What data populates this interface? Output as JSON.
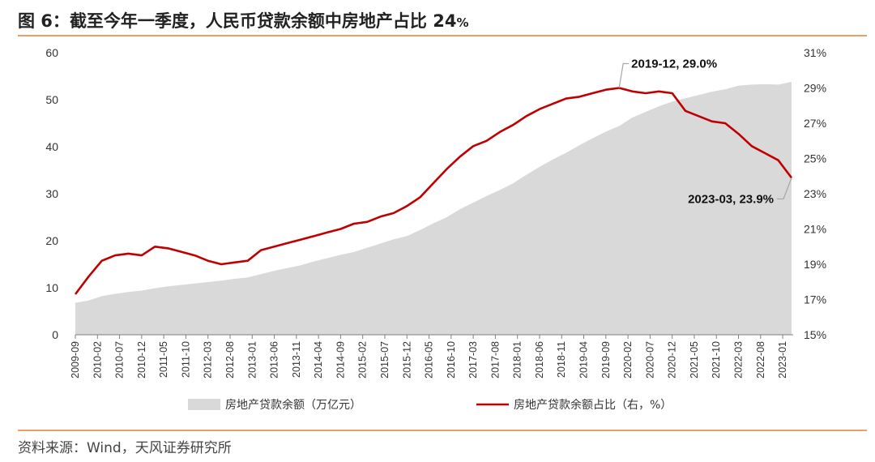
{
  "title": {
    "prefix": "图 6：",
    "text": "截至今年一季度，人民币贷款余额中房地产占比 24",
    "suffix": "%"
  },
  "source": "资料来源：Wind，天风证券研究所",
  "colors": {
    "area": "#D9D9D9",
    "line": "#C00000",
    "rule": "#E8A06A"
  },
  "chart_data": {
    "type": "area+line",
    "x_tick_labels": [
      "2009-09",
      "2010-02",
      "2010-07",
      "2010-12",
      "2011-05",
      "2011-10",
      "2012-03",
      "2012-08",
      "2013-01",
      "2013-06",
      "2013-11",
      "2014-04",
      "2014-09",
      "2015-02",
      "2015-07",
      "2015-12",
      "2016-05",
      "2016-10",
      "2017-03",
      "2017-08",
      "2018-01",
      "2018-06",
      "2018-11",
      "2019-04",
      "2019-09",
      "2020-02",
      "2020-07",
      "2020-12",
      "2021-05",
      "2021-10",
      "2022-03",
      "2022-08",
      "2023-01"
    ],
    "left_axis": {
      "ticks": [
        "0",
        "10",
        "20",
        "30",
        "40",
        "50",
        "60"
      ],
      "ylim": [
        0,
        60
      ]
    },
    "right_axis": {
      "ticks": [
        "15%",
        "17%",
        "19%",
        "21%",
        "23%",
        "25%",
        "27%",
        "29%",
        "31%"
      ],
      "ylim": [
        15,
        31
      ]
    },
    "series": [
      {
        "name": "房地产贷款余额（万亿元）",
        "type": "area",
        "axis": "left",
        "points": [
          [
            "2009-09",
            6.8
          ],
          [
            "2009-12",
            7.3
          ],
          [
            "2010-03",
            8.2
          ],
          [
            "2010-06",
            8.7
          ],
          [
            "2010-09",
            9.1
          ],
          [
            "2010-12",
            9.4
          ],
          [
            "2011-03",
            9.9
          ],
          [
            "2011-06",
            10.3
          ],
          [
            "2011-09",
            10.6
          ],
          [
            "2011-12",
            10.9
          ],
          [
            "2012-03",
            11.2
          ],
          [
            "2012-06",
            11.5
          ],
          [
            "2012-09",
            11.9
          ],
          [
            "2012-12",
            12.2
          ],
          [
            "2013-03",
            12.9
          ],
          [
            "2013-06",
            13.6
          ],
          [
            "2013-09",
            14.2
          ],
          [
            "2013-12",
            14.8
          ],
          [
            "2014-03",
            15.6
          ],
          [
            "2014-06",
            16.3
          ],
          [
            "2014-09",
            17.0
          ],
          [
            "2014-12",
            17.6
          ],
          [
            "2015-03",
            18.5
          ],
          [
            "2015-06",
            19.4
          ],
          [
            "2015-09",
            20.3
          ],
          [
            "2015-12",
            21.0
          ],
          [
            "2016-03",
            22.3
          ],
          [
            "2016-06",
            23.7
          ],
          [
            "2016-09",
            25.0
          ],
          [
            "2016-12",
            26.7
          ],
          [
            "2017-03",
            28.1
          ],
          [
            "2017-06",
            29.5
          ],
          [
            "2017-09",
            30.8
          ],
          [
            "2017-12",
            32.2
          ],
          [
            "2018-03",
            34.0
          ],
          [
            "2018-06",
            35.7
          ],
          [
            "2018-09",
            37.3
          ],
          [
            "2018-12",
            38.7
          ],
          [
            "2019-03",
            40.3
          ],
          [
            "2019-06",
            41.8
          ],
          [
            "2019-09",
            43.2
          ],
          [
            "2019-12",
            44.4
          ],
          [
            "2020-03",
            46.2
          ],
          [
            "2020-06",
            47.4
          ],
          [
            "2020-09",
            48.6
          ],
          [
            "2020-12",
            49.6
          ],
          [
            "2021-03",
            50.3
          ],
          [
            "2021-06",
            51.0
          ],
          [
            "2021-09",
            51.7
          ],
          [
            "2021-12",
            52.2
          ],
          [
            "2022-03",
            53.0
          ],
          [
            "2022-06",
            53.2
          ],
          [
            "2022-09",
            53.3
          ],
          [
            "2022-12",
            53.2
          ],
          [
            "2023-03",
            53.8
          ]
        ]
      },
      {
        "name": "房地产贷款余额占比（右，%）",
        "type": "line",
        "axis": "right",
        "points": [
          [
            "2009-09",
            17.3
          ],
          [
            "2009-12",
            18.3
          ],
          [
            "2010-03",
            19.2
          ],
          [
            "2010-06",
            19.5
          ],
          [
            "2010-09",
            19.6
          ],
          [
            "2010-12",
            19.5
          ],
          [
            "2011-03",
            20.0
          ],
          [
            "2011-06",
            19.9
          ],
          [
            "2011-09",
            19.7
          ],
          [
            "2011-12",
            19.5
          ],
          [
            "2012-03",
            19.2
          ],
          [
            "2012-06",
            19.0
          ],
          [
            "2012-09",
            19.1
          ],
          [
            "2012-12",
            19.2
          ],
          [
            "2013-03",
            19.8
          ],
          [
            "2013-06",
            20.0
          ],
          [
            "2013-09",
            20.2
          ],
          [
            "2013-12",
            20.4
          ],
          [
            "2014-03",
            20.6
          ],
          [
            "2014-06",
            20.8
          ],
          [
            "2014-09",
            21.0
          ],
          [
            "2014-12",
            21.3
          ],
          [
            "2015-03",
            21.4
          ],
          [
            "2015-06",
            21.7
          ],
          [
            "2015-09",
            21.9
          ],
          [
            "2015-12",
            22.3
          ],
          [
            "2016-03",
            22.8
          ],
          [
            "2016-06",
            23.6
          ],
          [
            "2016-09",
            24.4
          ],
          [
            "2016-12",
            25.1
          ],
          [
            "2017-03",
            25.7
          ],
          [
            "2017-06",
            26.0
          ],
          [
            "2017-09",
            26.5
          ],
          [
            "2017-12",
            26.9
          ],
          [
            "2018-03",
            27.4
          ],
          [
            "2018-06",
            27.8
          ],
          [
            "2018-09",
            28.1
          ],
          [
            "2018-12",
            28.4
          ],
          [
            "2019-03",
            28.5
          ],
          [
            "2019-06",
            28.7
          ],
          [
            "2019-09",
            28.9
          ],
          [
            "2019-12",
            29.0
          ],
          [
            "2020-03",
            28.8
          ],
          [
            "2020-06",
            28.7
          ],
          [
            "2020-09",
            28.8
          ],
          [
            "2020-12",
            28.7
          ],
          [
            "2021-03",
            27.7
          ],
          [
            "2021-06",
            27.4
          ],
          [
            "2021-09",
            27.1
          ],
          [
            "2021-12",
            27.0
          ],
          [
            "2022-03",
            26.4
          ],
          [
            "2022-06",
            25.7
          ],
          [
            "2022-09",
            25.3
          ],
          [
            "2022-12",
            24.9
          ],
          [
            "2023-03",
            23.9
          ]
        ]
      }
    ],
    "annotations": [
      {
        "text": "2019-12, 29.0%",
        "at": [
          "2019-12",
          29.0
        ]
      },
      {
        "text": "2023-03, 23.9%",
        "at": [
          "2023-03",
          23.9
        ]
      }
    ],
    "legend_position": "bottom",
    "grid": false
  }
}
